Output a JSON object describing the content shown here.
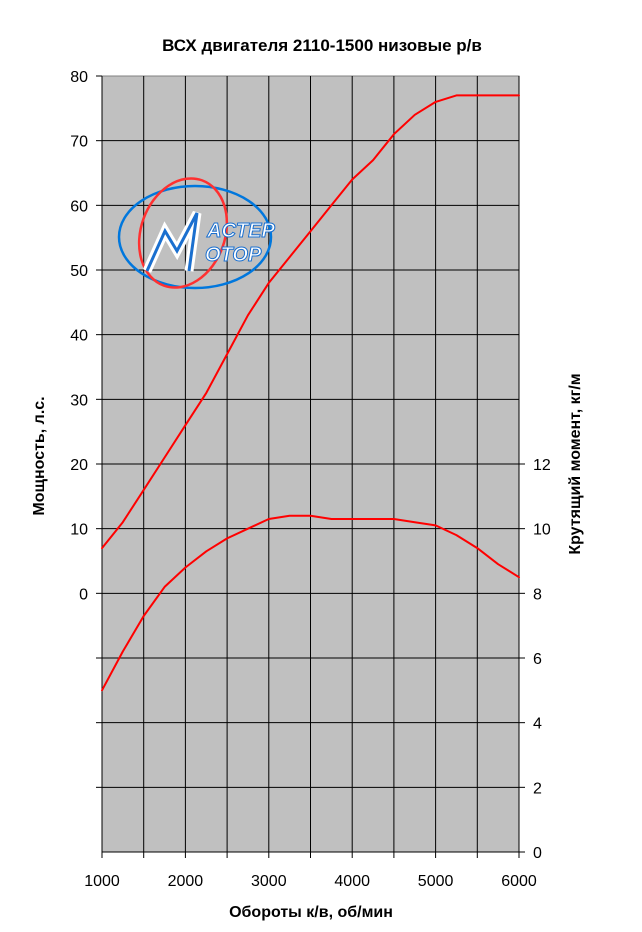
{
  "chart_data": {
    "type": "line",
    "title": "ВСХ двигателя 2110-1500 низовые р/в",
    "xlabel": "Обороты к/в, об/мин",
    "ylabel_left": "Мощность, л.с.",
    "ylabel_right": "Крутящий момент, кг/м",
    "x_ticks": [
      "1000",
      "2000",
      "3000",
      "4000",
      "5000",
      "6000"
    ],
    "y_left_ticks": [
      "0",
      "10",
      "20",
      "30",
      "40",
      "50",
      "60",
      "70",
      "80"
    ],
    "y_right_ticks": [
      "0",
      "2",
      "4",
      "6",
      "8",
      "10",
      "12"
    ],
    "xlim": [
      1000,
      6000
    ],
    "ylim_left": [
      -40,
      80
    ],
    "ylim_right": [
      0,
      24
    ],
    "grid": true,
    "plot_background": "#c0c0c0",
    "series_color": "#ff0000",
    "logo_text": "MASTER MOTOR",
    "series": [
      {
        "axis": "left",
        "x": [
          1000,
          1250,
          1500,
          1750,
          2000,
          2250,
          2500,
          2750,
          3000,
          3250,
          3500,
          3750,
          4000,
          4250,
          4500,
          4750,
          5000,
          5250,
          5500,
          5750,
          6000
        ],
        "y": [
          7,
          11,
          16,
          21,
          26,
          31,
          37,
          43,
          48,
          52,
          56,
          60,
          64,
          67,
          71,
          74,
          76,
          77,
          77,
          77,
          77
        ]
      },
      {
        "axis": "right",
        "x": [
          1000,
          1250,
          1500,
          1750,
          2000,
          2250,
          2500,
          2750,
          3000,
          3250,
          3500,
          3750,
          4000,
          4250,
          4500,
          4750,
          5000,
          5250,
          5500,
          5750,
          6000
        ],
        "y": [
          5.0,
          6.2,
          7.3,
          8.2,
          8.8,
          9.3,
          9.7,
          10.0,
          10.3,
          10.4,
          10.4,
          10.3,
          10.3,
          10.3,
          10.3,
          10.2,
          10.1,
          9.8,
          9.4,
          8.9,
          8.5
        ]
      }
    ]
  }
}
